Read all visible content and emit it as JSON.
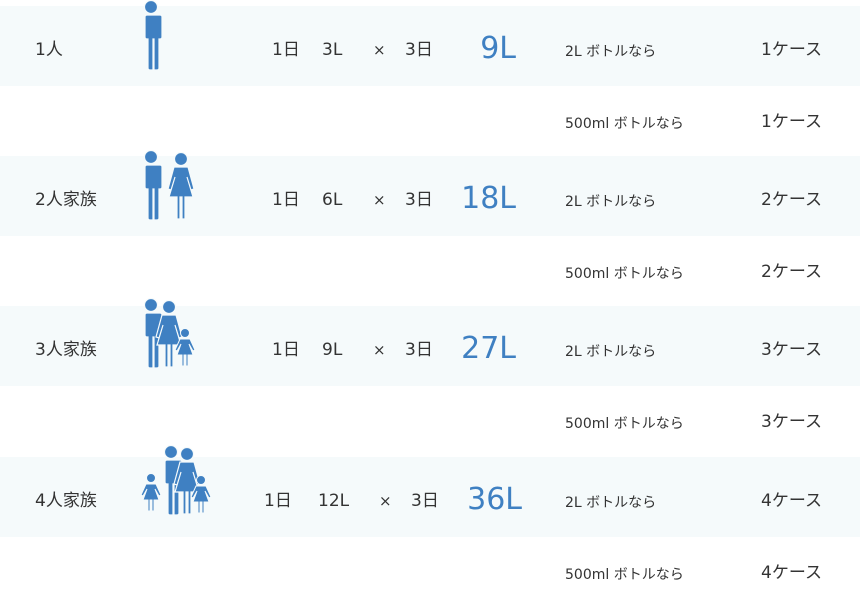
{
  "accent_color": "#3f80c2",
  "band_color": "#f5fafb",
  "rows": [
    {
      "label": "1人",
      "icon": "person-icon",
      "per_day_label": "1日",
      "per_day": "3L",
      "times": "×",
      "days": "3日",
      "total": "9L",
      "bottles": [
        {
          "type": "2L ボトルなら",
          "cases": "1ケース"
        },
        {
          "type": "500ml ボトルなら",
          "cases": "1ケース"
        }
      ]
    },
    {
      "label": "2人家族",
      "icon": "couple-icon",
      "per_day_label": "1日",
      "per_day": "6L",
      "times": "×",
      "days": "3日",
      "total": "18L",
      "bottles": [
        {
          "type": "2L ボトルなら",
          "cases": "2ケース"
        },
        {
          "type": "500ml ボトルなら",
          "cases": "2ケース"
        }
      ]
    },
    {
      "label": "3人家族",
      "icon": "family-3-icon",
      "per_day_label": "1日",
      "per_day": "9L",
      "times": "×",
      "days": "3日",
      "total": "27L",
      "bottles": [
        {
          "type": "2L ボトルなら",
          "cases": "3ケース"
        },
        {
          "type": "500ml ボトルなら",
          "cases": "3ケース"
        }
      ]
    },
    {
      "label": "4人家族",
      "icon": "family-4-icon",
      "per_day_label": "1日",
      "per_day": "12L",
      "times": "×",
      "days": "3日",
      "total": "36L",
      "bottles": [
        {
          "type": "2L ボトルなら",
          "cases": "4ケース"
        },
        {
          "type": "500ml ボトルなら",
          "cases": "4ケース"
        }
      ]
    }
  ]
}
